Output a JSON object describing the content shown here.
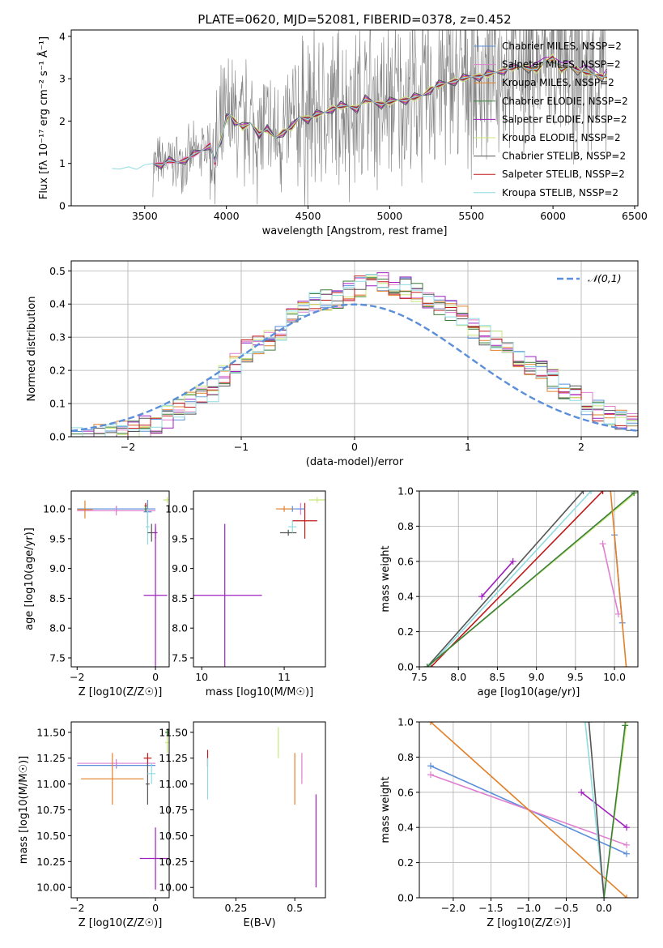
{
  "figure_title": "PLATE=0620, MJD=52081, FIBERID=0378, z=0.452",
  "series_colors": {
    "Chabrier MILES": "#5b8fd9",
    "Salpeter MILES": "#e07fcf",
    "Kroupa MILES": "#e2812a",
    "Chabrier ELODIE": "#3a7d3a",
    "Salpeter ELODIE": "#a020c0",
    "Kroupa ELODIE": "#c8e87a",
    "Chabrier STELIB": "#555555",
    "Salpeter STELIB": "#c01818",
    "Kroupa STELIB": "#8fdbe0",
    "data": "#808080",
    "normal": "#5b8fd9"
  },
  "chart_data": [
    {
      "id": "spectrum",
      "type": "line",
      "title": "PLATE=0620, MJD=52081, FIBERID=0378, z=0.452",
      "xlabel": "wavelength [Angstrom, rest frame]",
      "ylabel": "Flux [fλ 10⁻¹⁷ erg cm⁻² s⁻¹ Å⁻¹]",
      "xlim": [
        3050,
        6520
      ],
      "ylim": [
        0,
        4.15
      ],
      "xticks": [
        3500,
        4000,
        4500,
        5000,
        5500,
        6000,
        6500
      ],
      "yticks": [
        0,
        1,
        2,
        3,
        4
      ],
      "legend_position": "top-right",
      "legend": [
        "Chabrier MILES, NSSP=2",
        "Salpeter MILES, NSSP=2",
        "Kroupa MILES, NSSP=2",
        "Chabrier ELODIE, NSSP=2",
        "Salpeter ELODIE, NSSP=2",
        "Kroupa ELODIE, NSSP=2",
        "Chabrier STELIB, NSSP=2",
        "Salpeter STELIB, NSSP=2",
        "Kroupa STELIB, NSSP=2"
      ],
      "model_x": [
        3200,
        3280,
        3300,
        3350,
        3400,
        3450,
        3500,
        3550,
        3600,
        3650,
        3700,
        3750,
        3800,
        3850,
        3900,
        3930,
        3950,
        3970,
        4000,
        4020,
        4050,
        4100,
        4150,
        4200,
        4250,
        4300,
        4350,
        4400,
        4450,
        4500,
        4550,
        4600,
        4650,
        4700,
        4750,
        4800,
        4850,
        4900,
        4950,
        5000,
        5050,
        5100,
        5150,
        5200,
        5250,
        5300,
        5350,
        5400,
        5450,
        5500,
        5550,
        5600,
        5650,
        5700,
        5750,
        5800,
        5850,
        5900,
        5950,
        6000,
        6050,
        6100,
        6150,
        6200,
        6250,
        6300,
        6330
      ],
      "model_y": [
        0.75,
        0.78,
        0.9,
        0.85,
        0.92,
        0.88,
        0.95,
        1.0,
        0.98,
        1.05,
        1.02,
        1.1,
        1.2,
        1.3,
        1.45,
        1.0,
        1.35,
        1.6,
        2.05,
        2.15,
        2.0,
        1.85,
        1.95,
        1.7,
        1.8,
        1.6,
        1.75,
        1.85,
        2.1,
        2.05,
        2.15,
        2.2,
        2.3,
        2.35,
        2.35,
        2.3,
        2.5,
        2.45,
        2.4,
        2.45,
        2.5,
        2.5,
        2.55,
        2.6,
        2.75,
        2.85,
        2.9,
        2.95,
        3.0,
        3.05,
        3.05,
        3.1,
        3.15,
        3.2,
        3.25,
        3.3,
        3.25,
        3.2,
        3.4,
        3.5,
        3.2,
        3.3,
        3.2,
        3.15,
        3.1,
        3.05,
        3.05
      ],
      "data_x_range": [
        3550,
        6330
      ]
    },
    {
      "id": "residuals",
      "type": "line",
      "xlabel": "(data-model)/error",
      "ylabel": "Normed distribution",
      "xlim": [
        -2.5,
        2.5
      ],
      "ylim": [
        0,
        0.53
      ],
      "xticks": [
        -2,
        -1,
        0,
        1,
        2
      ],
      "yticks": [
        0,
        0.1,
        0.2,
        0.3,
        0.4,
        0.5
      ],
      "grid": true,
      "legend": [
        "𝒩(0,1)"
      ],
      "legend_position": "top-right",
      "bin_edges_start": -2.5,
      "bin_width": 0.1,
      "hist_base": [
        0.0,
        0.0,
        0.01,
        0.01,
        0.02,
        0.02,
        0.03,
        0.04,
        0.06,
        0.08,
        0.1,
        0.12,
        0.14,
        0.18,
        0.22,
        0.26,
        0.27,
        0.29,
        0.32,
        0.36,
        0.38,
        0.4,
        0.41,
        0.42,
        0.44,
        0.45,
        0.46,
        0.47,
        0.46,
        0.45,
        0.44,
        0.42,
        0.4,
        0.38,
        0.36,
        0.33,
        0.31,
        0.29,
        0.27,
        0.24,
        0.22,
        0.2,
        0.17,
        0.14,
        0.12,
        0.1,
        0.08,
        0.06,
        0.05,
        0.04
      ]
    },
    {
      "id": "age-vs-Z",
      "type": "scatter",
      "xlabel": "Z [log10(Z/Z☉)]",
      "ylabel": "age  [log10(age/yr)]",
      "xlim": [
        -2.15,
        0.35
      ],
      "ylim": [
        7.35,
        10.3
      ],
      "xticks": [
        -2,
        0
      ],
      "yticks": [
        7.5,
        8.0,
        8.5,
        9.0,
        9.5,
        10.0
      ]
    },
    {
      "id": "age-vs-mass",
      "type": "scatter",
      "xlabel": "mass [log10(M/M☉)]",
      "xlim": [
        9.9,
        11.5
      ],
      "ylim": [
        7.35,
        10.3
      ],
      "xticks": [
        10,
        11
      ],
      "yticks": [
        7.5,
        8.0,
        8.5,
        9.0,
        9.5,
        10.0
      ]
    },
    {
      "id": "massweight-vs-age",
      "type": "line",
      "xlabel": "age  [log10(age/yr)]",
      "ylabel": "mass weight",
      "xlim": [
        7.5,
        10.3
      ],
      "ylim": [
        0,
        1
      ],
      "xticks": [
        7.5,
        8.0,
        8.5,
        9.0,
        9.5,
        10.0
      ],
      "yticks": [
        0.0,
        0.2,
        0.4,
        0.6,
        0.8,
        1.0
      ],
      "grid": true
    },
    {
      "id": "mass-vs-Z",
      "type": "scatter",
      "xlabel": "Z [log10(Z/Z☉)]",
      "ylabel": "mass [log10(M/M☉)]",
      "xlim": [
        -2.15,
        0.35
      ],
      "ylim": [
        9.9,
        11.6
      ],
      "xticks": [
        -2,
        0
      ],
      "yticks": [
        10.0,
        10.25,
        10.5,
        10.75,
        11.0,
        11.25,
        11.5
      ]
    },
    {
      "id": "mass-vs-EBV",
      "type": "scatter",
      "xlabel": "E(B-V)",
      "xlim": [
        0.07,
        0.63
      ],
      "ylim": [
        9.9,
        11.6
      ],
      "xticks": [
        0.25,
        0.5
      ],
      "yticks": [
        10.0,
        10.25,
        10.5,
        10.75,
        11.0,
        11.25,
        11.5
      ]
    },
    {
      "id": "massweight-vs-Z",
      "type": "line",
      "xlabel": "Z [log10(Z/Z☉)]",
      "ylabel": "mass weight",
      "xlim": [
        -2.45,
        0.45
      ],
      "ylim": [
        0,
        1
      ],
      "xticks": [
        -2.0,
        -1.5,
        -1.0,
        -0.5,
        0.0
      ],
      "yticks": [
        0.0,
        0.2,
        0.4,
        0.6,
        0.8,
        1.0
      ],
      "grid": true
    }
  ]
}
